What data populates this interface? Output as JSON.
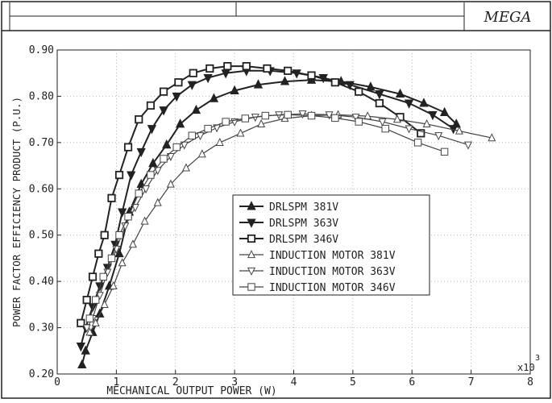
{
  "header": {
    "logo_text": "MEGA"
  },
  "chart_data": {
    "type": "line",
    "title": "",
    "xlabel": "MECHANICAL OUTPUT POWER (W)",
    "ylabel": "POWER FACTOR EFFICIENCY PRODUCT (P.U.)",
    "x_multiplier": "x10",
    "x_multiplier_exp": "3",
    "xlim": [
      0,
      8
    ],
    "ylim": [
      0.2,
      0.9
    ],
    "x_ticks": [
      "0",
      "1",
      "2",
      "3",
      "4",
      "5",
      "6",
      "7",
      "8"
    ],
    "y_ticks": [
      "0.20",
      "0.30",
      "0.40",
      "0.50",
      "0.60",
      "0.70",
      "0.80",
      "0.90"
    ],
    "grid": true,
    "legend_position": "center-right",
    "series": [
      {
        "name": "DRLSPM 381V",
        "marker": "triangle-up",
        "stroke": "#222222",
        "stroke_width": 2,
        "x": [
          0.42,
          0.48,
          0.6,
          0.72,
          0.88,
          1.05,
          1.22,
          1.42,
          1.62,
          1.85,
          2.08,
          2.35,
          2.65,
          3.0,
          3.4,
          3.85,
          4.3,
          4.8,
          5.3,
          5.8,
          6.2,
          6.55,
          6.75
        ],
        "y": [
          0.22,
          0.25,
          0.29,
          0.33,
          0.39,
          0.46,
          0.55,
          0.61,
          0.655,
          0.695,
          0.74,
          0.77,
          0.795,
          0.812,
          0.825,
          0.832,
          0.835,
          0.832,
          0.82,
          0.805,
          0.785,
          0.765,
          0.74
        ]
      },
      {
        "name": "DRLSPM 363V",
        "marker": "triangle-down",
        "stroke": "#222222",
        "stroke_width": 2,
        "x": [
          0.4,
          0.48,
          0.6,
          0.72,
          0.85,
          0.98,
          1.1,
          1.25,
          1.42,
          1.6,
          1.8,
          2.02,
          2.28,
          2.55,
          2.85,
          3.2,
          3.6,
          4.05,
          4.5,
          4.95,
          5.45,
          5.95,
          6.35,
          6.7
        ],
        "y": [
          0.26,
          0.3,
          0.345,
          0.39,
          0.43,
          0.48,
          0.55,
          0.63,
          0.68,
          0.73,
          0.77,
          0.8,
          0.825,
          0.84,
          0.85,
          0.855,
          0.855,
          0.85,
          0.84,
          0.825,
          0.805,
          0.785,
          0.76,
          0.73
        ]
      },
      {
        "name": "DRLSPM 346V",
        "marker": "square",
        "stroke": "#222222",
        "stroke_width": 2,
        "x": [
          0.4,
          0.5,
          0.6,
          0.7,
          0.8,
          0.92,
          1.05,
          1.2,
          1.38,
          1.58,
          1.8,
          2.05,
          2.3,
          2.58,
          2.88,
          3.2,
          3.55,
          3.9,
          4.3,
          4.7,
          5.1,
          5.45,
          5.8,
          6.15
        ],
        "y": [
          0.31,
          0.36,
          0.41,
          0.46,
          0.5,
          0.58,
          0.63,
          0.69,
          0.75,
          0.78,
          0.81,
          0.83,
          0.85,
          0.86,
          0.865,
          0.865,
          0.86,
          0.855,
          0.845,
          0.83,
          0.81,
          0.785,
          0.755,
          0.72
        ]
      },
      {
        "name": "INDUCTION MOTOR 381V",
        "marker": "triangle-up-open",
        "stroke": "#444444",
        "stroke_width": 1.2,
        "x": [
          0.55,
          0.65,
          0.8,
          0.95,
          1.1,
          1.28,
          1.48,
          1.7,
          1.92,
          2.18,
          2.45,
          2.75,
          3.1,
          3.45,
          3.85,
          4.3,
          4.75,
          5.25,
          5.75,
          6.25,
          6.8,
          7.35
        ],
        "y": [
          0.29,
          0.31,
          0.35,
          0.39,
          0.44,
          0.48,
          0.53,
          0.57,
          0.61,
          0.645,
          0.675,
          0.7,
          0.72,
          0.74,
          0.752,
          0.758,
          0.76,
          0.757,
          0.75,
          0.74,
          0.725,
          0.71
        ]
      },
      {
        "name": "INDUCTION MOTOR 363V",
        "marker": "triangle-down-open",
        "stroke": "#444444",
        "stroke_width": 1.2,
        "x": [
          0.5,
          0.6,
          0.72,
          0.85,
          1.0,
          1.15,
          1.32,
          1.5,
          1.7,
          1.92,
          2.15,
          2.42,
          2.7,
          3.0,
          3.35,
          3.75,
          4.15,
          4.6,
          5.05,
          5.5,
          5.95,
          6.45,
          6.95
        ],
        "y": [
          0.3,
          0.32,
          0.37,
          0.42,
          0.47,
          0.52,
          0.56,
          0.6,
          0.64,
          0.67,
          0.695,
          0.715,
          0.732,
          0.745,
          0.755,
          0.76,
          0.762,
          0.76,
          0.755,
          0.745,
          0.73,
          0.715,
          0.695
        ]
      },
      {
        "name": "INDUCTION MOTOR 346V",
        "marker": "square-open",
        "stroke": "#444444",
        "stroke_width": 1.2,
        "x": [
          0.55,
          0.65,
          0.78,
          0.92,
          1.05,
          1.2,
          1.38,
          1.58,
          1.8,
          2.02,
          2.28,
          2.55,
          2.85,
          3.18,
          3.52,
          3.9,
          4.3,
          4.7,
          5.1,
          5.55,
          6.1,
          6.55
        ],
        "y": [
          0.32,
          0.36,
          0.41,
          0.45,
          0.5,
          0.54,
          0.59,
          0.63,
          0.665,
          0.69,
          0.715,
          0.73,
          0.745,
          0.752,
          0.758,
          0.76,
          0.758,
          0.753,
          0.745,
          0.73,
          0.7,
          0.68
        ]
      }
    ]
  }
}
